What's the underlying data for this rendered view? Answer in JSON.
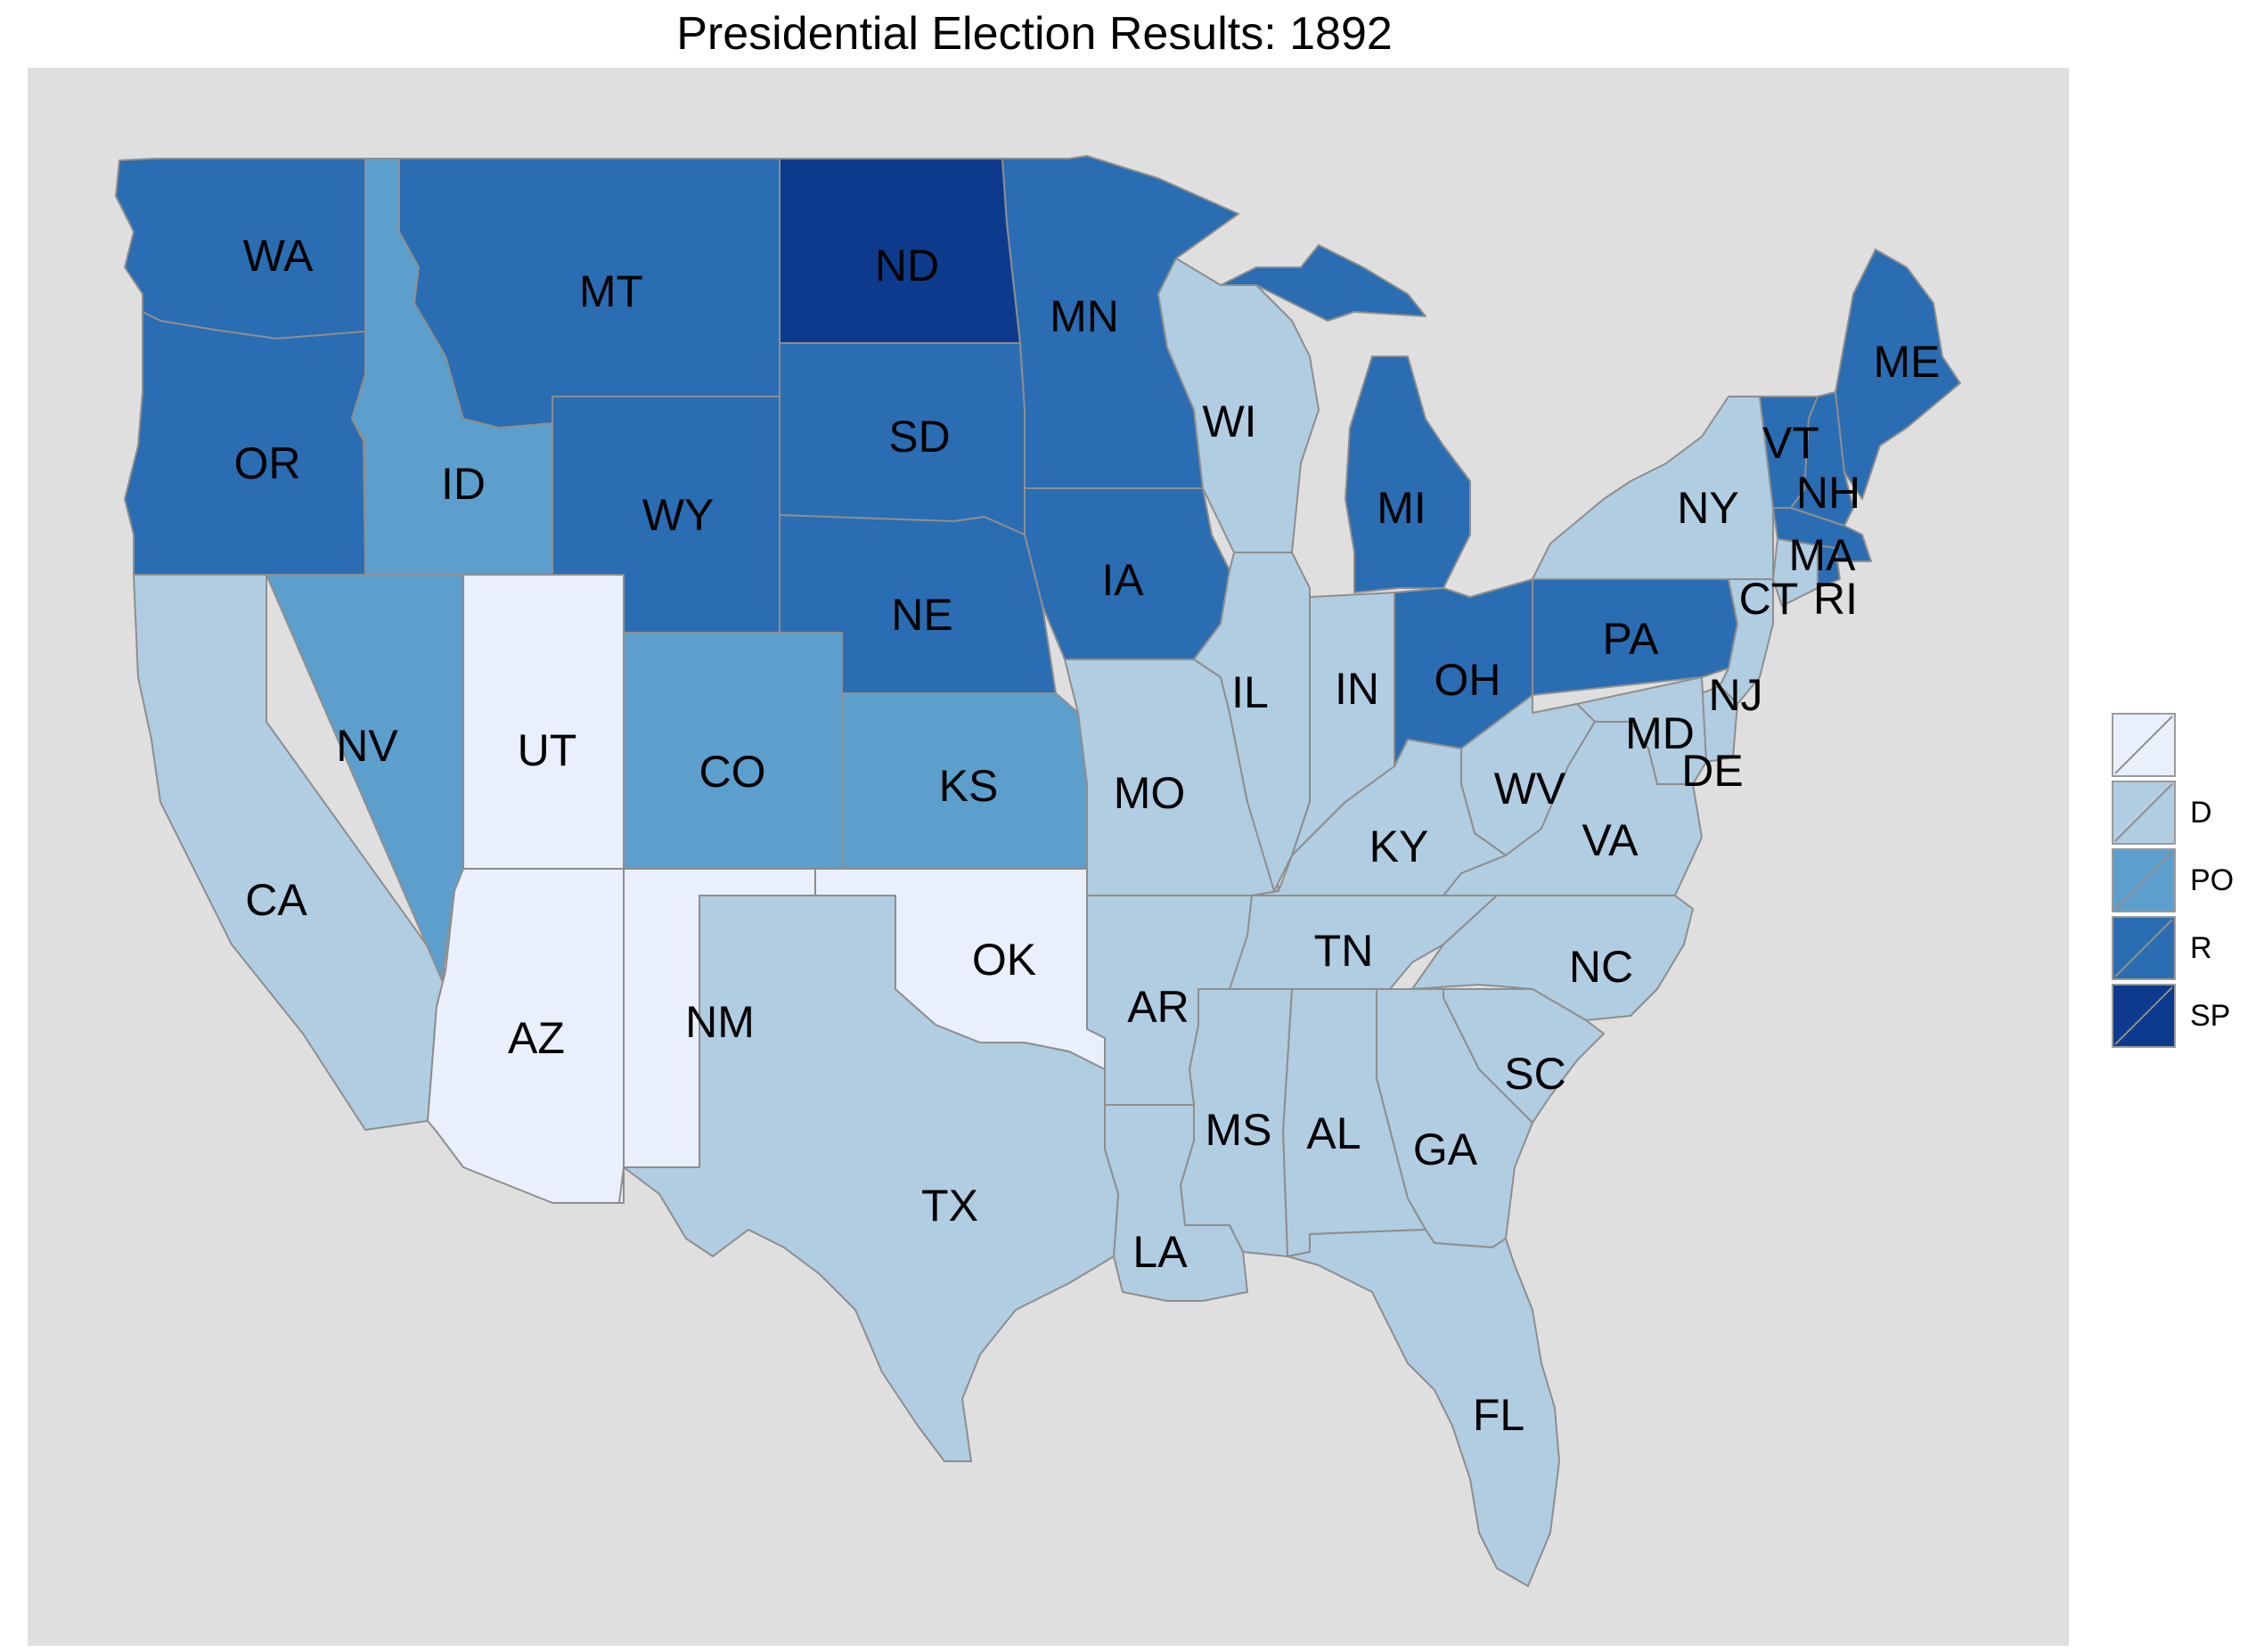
{
  "title": "Presidential Election Results: 1892",
  "legend": [
    {
      "label": "",
      "color": "#eaf0fb"
    },
    {
      "label": "D",
      "color": "#b0cde2"
    },
    {
      "label": "PO",
      "color": "#5c9fcd"
    },
    {
      "label": "R",
      "color": "#2a6db3"
    },
    {
      "label": "SP",
      "color": "#0d3a8c"
    }
  ],
  "states": [
    {
      "abbr": "WA",
      "party": "R"
    },
    {
      "abbr": "OR",
      "party": "R"
    },
    {
      "abbr": "ID",
      "party": "PO"
    },
    {
      "abbr": "MT",
      "party": "R"
    },
    {
      "abbr": "WY",
      "party": "R"
    },
    {
      "abbr": "ND",
      "party": "SP"
    },
    {
      "abbr": "SD",
      "party": "R"
    },
    {
      "abbr": "NE",
      "party": "R"
    },
    {
      "abbr": "MN",
      "party": "R"
    },
    {
      "abbr": "IA",
      "party": "R"
    },
    {
      "abbr": "WI",
      "party": "D"
    },
    {
      "abbr": "MI",
      "party": "R"
    },
    {
      "abbr": "CA",
      "party": "D"
    },
    {
      "abbr": "NV",
      "party": "PO"
    },
    {
      "abbr": "UT",
      "party": ""
    },
    {
      "abbr": "CO",
      "party": "PO"
    },
    {
      "abbr": "KS",
      "party": "PO"
    },
    {
      "abbr": "MO",
      "party": "D"
    },
    {
      "abbr": "IL",
      "party": "D"
    },
    {
      "abbr": "IN",
      "party": "D"
    },
    {
      "abbr": "OH",
      "party": "R"
    },
    {
      "abbr": "PA",
      "party": "R"
    },
    {
      "abbr": "NY",
      "party": "D"
    },
    {
      "abbr": "VT",
      "party": "R"
    },
    {
      "abbr": "NH",
      "party": "R"
    },
    {
      "abbr": "ME",
      "party": "R"
    },
    {
      "abbr": "MA",
      "party": "R"
    },
    {
      "abbr": "CT",
      "party": "D"
    },
    {
      "abbr": "RI",
      "party": "R"
    },
    {
      "abbr": "NJ",
      "party": "D"
    },
    {
      "abbr": "DE",
      "party": "D"
    },
    {
      "abbr": "MD",
      "party": "D"
    },
    {
      "abbr": "WV",
      "party": "D"
    },
    {
      "abbr": "VA",
      "party": "D"
    },
    {
      "abbr": "KY",
      "party": "D"
    },
    {
      "abbr": "TN",
      "party": "D"
    },
    {
      "abbr": "NC",
      "party": "D"
    },
    {
      "abbr": "SC",
      "party": "D"
    },
    {
      "abbr": "GA",
      "party": "D"
    },
    {
      "abbr": "AL",
      "party": "D"
    },
    {
      "abbr": "MS",
      "party": "D"
    },
    {
      "abbr": "AR",
      "party": "D"
    },
    {
      "abbr": "LA",
      "party": "D"
    },
    {
      "abbr": "TX",
      "party": "D"
    },
    {
      "abbr": "OK",
      "party": ""
    },
    {
      "abbr": "NM",
      "party": ""
    },
    {
      "abbr": "AZ",
      "party": ""
    },
    {
      "abbr": "FL",
      "party": "D"
    }
  ]
}
